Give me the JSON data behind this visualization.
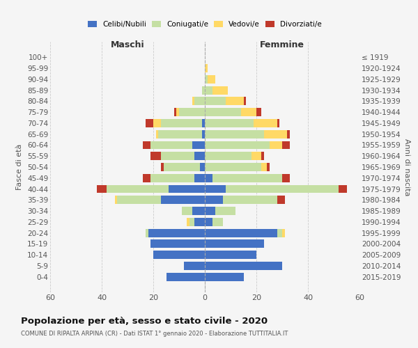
{
  "age_groups": [
    "0-4",
    "5-9",
    "10-14",
    "15-19",
    "20-24",
    "25-29",
    "30-34",
    "35-39",
    "40-44",
    "45-49",
    "50-54",
    "55-59",
    "60-64",
    "65-69",
    "70-74",
    "75-79",
    "80-84",
    "85-89",
    "90-94",
    "95-99",
    "100+"
  ],
  "birth_years": [
    "2015-2019",
    "2010-2014",
    "2005-2009",
    "2000-2004",
    "1995-1999",
    "1990-1994",
    "1985-1989",
    "1980-1984",
    "1975-1979",
    "1970-1974",
    "1965-1969",
    "1960-1964",
    "1955-1959",
    "1950-1954",
    "1945-1949",
    "1940-1944",
    "1935-1939",
    "1930-1934",
    "1925-1929",
    "1920-1924",
    "≤ 1919"
  ],
  "male": {
    "celibi": [
      15,
      8,
      20,
      21,
      22,
      4,
      5,
      17,
      14,
      4,
      2,
      4,
      5,
      1,
      1,
      0,
      0,
      0,
      0,
      0,
      0
    ],
    "coniugati": [
      0,
      0,
      0,
      0,
      1,
      2,
      4,
      17,
      24,
      17,
      14,
      13,
      16,
      17,
      16,
      10,
      4,
      1,
      0,
      0,
      0
    ],
    "vedovi": [
      0,
      0,
      0,
      0,
      0,
      1,
      0,
      1,
      0,
      0,
      0,
      0,
      0,
      1,
      3,
      1,
      1,
      0,
      0,
      0,
      0
    ],
    "divorziati": [
      0,
      0,
      0,
      0,
      0,
      0,
      0,
      0,
      4,
      3,
      1,
      4,
      3,
      0,
      3,
      1,
      0,
      0,
      0,
      0,
      0
    ]
  },
  "female": {
    "nubili": [
      15,
      30,
      20,
      23,
      28,
      3,
      4,
      7,
      8,
      3,
      0,
      0,
      0,
      0,
      0,
      0,
      0,
      0,
      0,
      0,
      0
    ],
    "coniugate": [
      0,
      0,
      0,
      0,
      2,
      4,
      8,
      21,
      44,
      27,
      22,
      18,
      25,
      23,
      19,
      14,
      8,
      3,
      1,
      0,
      0
    ],
    "vedove": [
      0,
      0,
      0,
      0,
      1,
      0,
      0,
      0,
      0,
      0,
      2,
      4,
      5,
      9,
      9,
      6,
      7,
      6,
      3,
      1,
      0
    ],
    "divorziate": [
      0,
      0,
      0,
      0,
      0,
      0,
      0,
      3,
      3,
      3,
      1,
      1,
      3,
      1,
      1,
      2,
      1,
      0,
      0,
      0,
      0
    ]
  },
  "colors": {
    "celibi": "#4472c4",
    "coniugati": "#c5dfa3",
    "vedovi": "#ffd966",
    "divorziati": "#c0392b"
  },
  "xlim": 60,
  "title": "Popolazione per età, sesso e stato civile - 2020",
  "subtitle": "COMUNE DI RIPALTA ARPINA (CR) - Dati ISTAT 1° gennaio 2020 - Elaborazione TUTTITALIA.IT",
  "xlabel_left": "Maschi",
  "xlabel_right": "Femmine",
  "ylabel_left": "Fasce di età",
  "ylabel_right": "Anni di nascita",
  "bg_color": "#f5f5f5",
  "grid_color": "#cccccc"
}
